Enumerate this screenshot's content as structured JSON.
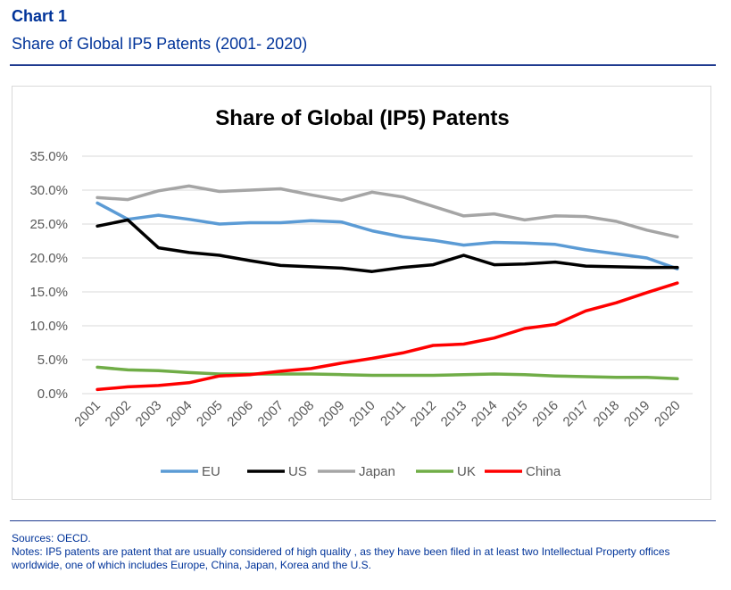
{
  "header": {
    "chart_number": "Chart 1",
    "subtitle": "Share of Global IP5 Patents (2001- 2020)"
  },
  "footer": {
    "sources": "Sources: OECD.",
    "notes": "Notes: IP5 patents are patent that are usually considered of high quality , as they have been filed in at least two Intellectual Property offices worldwide, one of which includes Europe, China, Japan, Korea and the U.S."
  },
  "chart_data": {
    "type": "line",
    "title": "Share of Global (IP5) Patents",
    "xlabel": "",
    "ylabel": "",
    "ylim": [
      0,
      35
    ],
    "yticks": [
      0,
      5,
      10,
      15,
      20,
      25,
      30,
      35
    ],
    "ytick_labels": [
      "0.0%",
      "5.0%",
      "10.0%",
      "15.0%",
      "20.0%",
      "25.0%",
      "30.0%",
      "35.0%"
    ],
    "grid": true,
    "legend_position": "bottom",
    "categories": [
      "2001",
      "2002",
      "2003",
      "2004",
      "2005",
      "2006",
      "2007",
      "2008",
      "2009",
      "2010",
      "2011",
      "2012",
      "2013",
      "2014",
      "2015",
      "2016",
      "2017",
      "2018",
      "2019",
      "2020"
    ],
    "series": [
      {
        "name": "EU",
        "color": "#5B9BD5",
        "values": [
          28.1,
          25.7,
          26.3,
          25.7,
          25.0,
          25.2,
          25.2,
          25.5,
          25.3,
          24.0,
          23.1,
          22.6,
          21.9,
          22.3,
          22.2,
          22.0,
          21.2,
          20.6,
          20.0,
          18.4
        ]
      },
      {
        "name": "US",
        "color": "#000000",
        "values": [
          24.7,
          25.6,
          21.5,
          20.8,
          20.4,
          19.6,
          18.9,
          18.7,
          18.5,
          18.0,
          18.6,
          19.0,
          20.4,
          19.0,
          19.1,
          19.4,
          18.8,
          18.7,
          18.6,
          18.6
        ]
      },
      {
        "name": "Japan",
        "color": "#A5A5A5",
        "values": [
          28.9,
          28.6,
          29.9,
          30.6,
          29.8,
          30.0,
          30.2,
          29.3,
          28.5,
          29.7,
          29.0,
          27.6,
          26.2,
          26.5,
          25.6,
          26.2,
          26.1,
          25.4,
          24.1,
          23.1
        ]
      },
      {
        "name": "UK",
        "color": "#70AD47",
        "values": [
          3.9,
          3.5,
          3.4,
          3.1,
          2.9,
          2.9,
          2.9,
          2.9,
          2.8,
          2.7,
          2.7,
          2.7,
          2.8,
          2.9,
          2.8,
          2.6,
          2.5,
          2.4,
          2.4,
          2.2
        ]
      },
      {
        "name": "China",
        "color": "#FF0000",
        "values": [
          0.6,
          1.0,
          1.2,
          1.6,
          2.6,
          2.8,
          3.3,
          3.7,
          4.5,
          5.2,
          6.0,
          7.1,
          7.3,
          8.2,
          9.6,
          10.2,
          12.2,
          13.4,
          14.9,
          16.3
        ]
      }
    ]
  }
}
